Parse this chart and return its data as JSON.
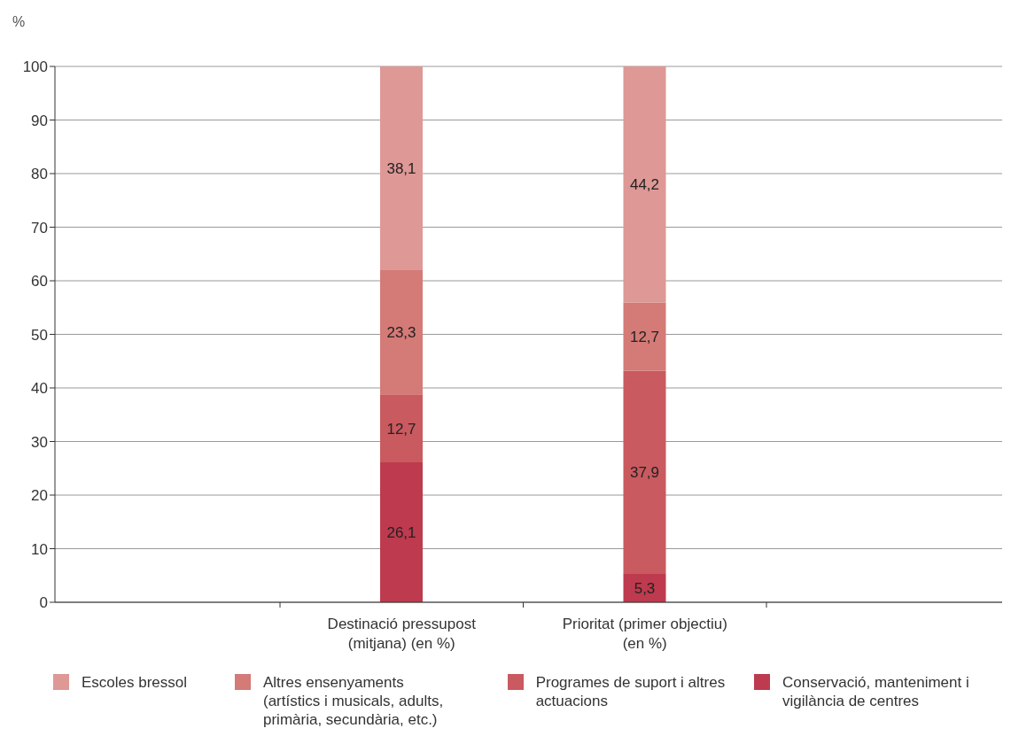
{
  "chart_data": {
    "type": "bar",
    "stacked": true,
    "ylabel": "%",
    "categories": [
      "Destinació pressupost\n(mitjana) (en %)",
      "Prioritat (primer objectiu)\n(en %)"
    ],
    "series": [
      {
        "name": "Conservació, manteniment i vigilància de centres",
        "color": "#be3a4e",
        "values": [
          26.1,
          5.3
        ],
        "value_labels": [
          "26,1",
          "5,3"
        ]
      },
      {
        "name": "Programes de suport i altres actuacions",
        "color": "#c95a5f",
        "values": [
          12.7,
          37.9
        ],
        "value_labels": [
          "12,7",
          "37,9"
        ]
      },
      {
        "name": "Altres ensenyaments (artístics i musicals, adults, primària, secundària, etc.)",
        "color": "#d47a77",
        "values": [
          23.3,
          12.7
        ],
        "value_labels": [
          "23,3",
          "12,7"
        ]
      },
      {
        "name": "Escoles bressol",
        "color": "#de9895",
        "values": [
          38.1,
          44.2
        ],
        "value_labels": [
          "38,1",
          "44,2"
        ]
      }
    ],
    "ylim": [
      0,
      100
    ],
    "yticks": [
      0,
      10,
      20,
      30,
      40,
      50,
      60,
      70,
      80,
      90,
      100
    ],
    "grid": "y",
    "legend": "bottom"
  }
}
